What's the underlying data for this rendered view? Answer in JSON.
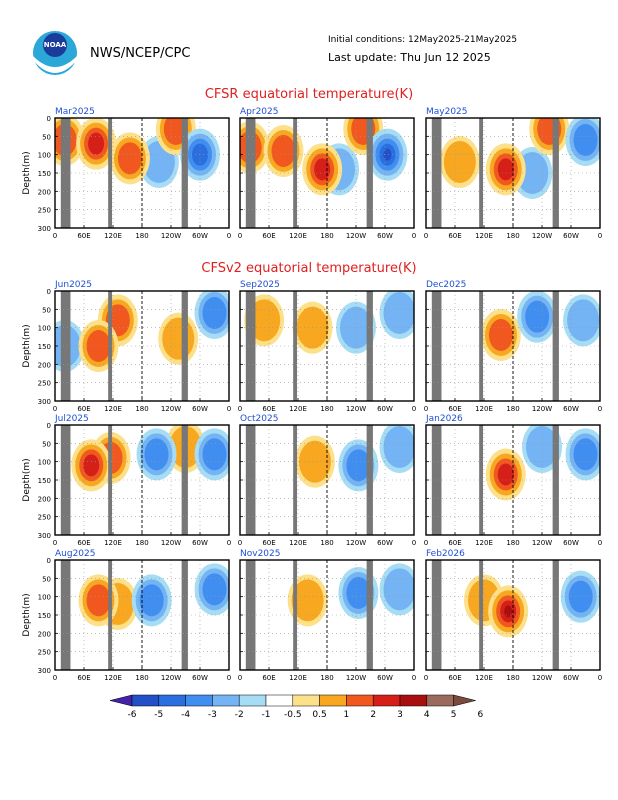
{
  "header": {
    "agency": "NWS/NCEP/CPC",
    "initial_conditions": "Initial conditions: 12May2025-21May2025",
    "last_update": "Last update: Thu Jun 12 2025"
  },
  "sections": [
    {
      "title": "CFSR equatorial temperature(K)"
    },
    {
      "title": "CFSv2 equatorial temperature(K)"
    }
  ],
  "colors": {
    "title_red": "#e02020",
    "panel_month_blue": "#1f4fd6",
    "land_mask_gray": "#777777",
    "grid_dot": "#999999",
    "date_line_dash": "#000000"
  },
  "axes": {
    "ylabel": "Depth(m)",
    "yticks": [
      "0",
      "50",
      "100",
      "150",
      "200",
      "250",
      "300"
    ],
    "ylim": [
      0,
      300
    ],
    "xticks": [
      "0",
      "60E",
      "120E",
      "180",
      "120W",
      "60W",
      "0"
    ]
  },
  "panels": [
    {
      "month": "Mar2025",
      "source": "CFSR",
      "yticks_shown": true
    },
    {
      "month": "Apr2025",
      "source": "CFSR",
      "yticks_shown": false
    },
    {
      "month": "May2025",
      "source": "CFSR",
      "yticks_shown": false
    },
    {
      "month": "Jun2025",
      "source": "CFSv2",
      "yticks_shown": true
    },
    {
      "month": "Sep2025",
      "source": "CFSv2",
      "yticks_shown": false
    },
    {
      "month": "Dec2025",
      "source": "CFSv2",
      "yticks_shown": false
    },
    {
      "month": "Jul2025",
      "source": "CFSv2",
      "yticks_shown": true
    },
    {
      "month": "Oct2025",
      "source": "CFSv2",
      "yticks_shown": false
    },
    {
      "month": "Jan2026",
      "source": "CFSv2",
      "yticks_shown": false
    },
    {
      "month": "Aug2025",
      "source": "CFSv2",
      "yticks_shown": true
    },
    {
      "month": "Nov2025",
      "source": "CFSv2",
      "yticks_shown": false
    },
    {
      "month": "Feb2026",
      "source": "CFSv2",
      "yticks_shown": false
    }
  ],
  "colorbar": {
    "labels": [
      "-6",
      "-5",
      "-4",
      "-3",
      "-2",
      "-1",
      "-0.5",
      "0.5",
      "1",
      "2",
      "3",
      "4",
      "5",
      "6"
    ],
    "colors": [
      "#4422aa",
      "#2250c8",
      "#2a6ee0",
      "#3f8ef0",
      "#74b4f4",
      "#a6dcf4",
      "#ffffff",
      "#fde08a",
      "#f8a820",
      "#f05820",
      "#d42018",
      "#a81010",
      "#9c6a5c",
      "#7a4a3a"
    ]
  },
  "chart_data": {
    "type": "heatmap",
    "title": "CFSR equatorial temperature(K) / CFSv2 equatorial temperature(K)",
    "xlabel": "",
    "ylabel": "Depth(m)",
    "x_categories": [
      "0",
      "60E",
      "120E",
      "180",
      "120W",
      "60W",
      "0"
    ],
    "ylim": [
      0,
      300
    ],
    "units": "K",
    "color_levels": [
      -6,
      -5,
      -4,
      -3,
      -2,
      -1,
      -0.5,
      0.5,
      1,
      2,
      3,
      4,
      5,
      6
    ],
    "land_mask_longitudes_deg_east": [
      [
        12,
        32
      ],
      [
        110,
        118
      ],
      [
        262,
        275
      ]
    ],
    "date_line_longitude_deg_east": 180,
    "anomaly_blobs": [
      {
        "panel": "Mar2025",
        "blobs": [
          {
            "lon": 85,
            "depth": 70,
            "value": 3
          },
          {
            "lon": 155,
            "depth": 110,
            "value": 2
          },
          {
            "lon": 20,
            "depth": 60,
            "value": 2
          },
          {
            "lon": 250,
            "depth": 30,
            "value": 2
          },
          {
            "lon": 300,
            "depth": 100,
            "value": -3
          },
          {
            "lon": 215,
            "depth": 120,
            "value": -1
          }
        ]
      },
      {
        "panel": "Apr2025",
        "blobs": [
          {
            "lon": 170,
            "depth": 140,
            "value": 3
          },
          {
            "lon": 20,
            "depth": 80,
            "value": 2
          },
          {
            "lon": 90,
            "depth": 90,
            "value": 2
          },
          {
            "lon": 255,
            "depth": 30,
            "value": 2
          },
          {
            "lon": 305,
            "depth": 100,
            "value": -4
          },
          {
            "lon": 205,
            "depth": 140,
            "value": -1
          }
        ]
      },
      {
        "panel": "May2025",
        "blobs": [
          {
            "lon": 165,
            "depth": 140,
            "value": 3
          },
          {
            "lon": 70,
            "depth": 120,
            "value": 1
          },
          {
            "lon": 255,
            "depth": 30,
            "value": 2
          },
          {
            "lon": 330,
            "depth": 60,
            "value": -2
          },
          {
            "lon": 220,
            "depth": 150,
            "value": -1
          }
        ]
      },
      {
        "panel": "Jun2025",
        "blobs": [
          {
            "lon": 130,
            "depth": 80,
            "value": 2
          },
          {
            "lon": 90,
            "depth": 150,
            "value": 2
          },
          {
            "lon": 330,
            "depth": 60,
            "value": -2
          },
          {
            "lon": 255,
            "depth": 130,
            "value": 1
          },
          {
            "lon": 20,
            "depth": 150,
            "value": -1
          }
        ]
      },
      {
        "panel": "Sep2025",
        "blobs": [
          {
            "lon": 150,
            "depth": 100,
            "value": 1
          },
          {
            "lon": 240,
            "depth": 100,
            "value": -1
          },
          {
            "lon": 330,
            "depth": 60,
            "value": -1
          },
          {
            "lon": 50,
            "depth": 80,
            "value": 1
          }
        ]
      },
      {
        "panel": "Dec2025",
        "blobs": [
          {
            "lon": 155,
            "depth": 120,
            "value": 2
          },
          {
            "lon": 230,
            "depth": 70,
            "value": -2
          },
          {
            "lon": 325,
            "depth": 80,
            "value": -1
          }
        ]
      },
      {
        "panel": "Jul2025",
        "blobs": [
          {
            "lon": 75,
            "depth": 110,
            "value": 3
          },
          {
            "lon": 115,
            "depth": 90,
            "value": 2
          },
          {
            "lon": 210,
            "depth": 80,
            "value": -2
          },
          {
            "lon": 330,
            "depth": 80,
            "value": -2
          },
          {
            "lon": 270,
            "depth": 60,
            "value": 1
          }
        ]
      },
      {
        "panel": "Oct2025",
        "blobs": [
          {
            "lon": 155,
            "depth": 100,
            "value": 1
          },
          {
            "lon": 245,
            "depth": 110,
            "value": -2
          },
          {
            "lon": 330,
            "depth": 60,
            "value": -1
          }
        ]
      },
      {
        "panel": "Jan2026",
        "blobs": [
          {
            "lon": 165,
            "depth": 135,
            "value": 3
          },
          {
            "lon": 240,
            "depth": 60,
            "value": -1
          },
          {
            "lon": 330,
            "depth": 80,
            "value": -2
          }
        ]
      },
      {
        "panel": "Aug2025",
        "blobs": [
          {
            "lon": 90,
            "depth": 110,
            "value": 2
          },
          {
            "lon": 200,
            "depth": 110,
            "value": -2
          },
          {
            "lon": 330,
            "depth": 80,
            "value": -2
          },
          {
            "lon": 130,
            "depth": 120,
            "value": 1
          }
        ]
      },
      {
        "panel": "Nov2025",
        "blobs": [
          {
            "lon": 140,
            "depth": 110,
            "value": 1
          },
          {
            "lon": 245,
            "depth": 90,
            "value": -2
          },
          {
            "lon": 330,
            "depth": 80,
            "value": -1
          }
        ]
      },
      {
        "panel": "Feb2026",
        "blobs": [
          {
            "lon": 170,
            "depth": 140,
            "value": 4
          },
          {
            "lon": 120,
            "depth": 110,
            "value": 1
          },
          {
            "lon": 320,
            "depth": 100,
            "value": -2
          }
        ]
      }
    ]
  }
}
